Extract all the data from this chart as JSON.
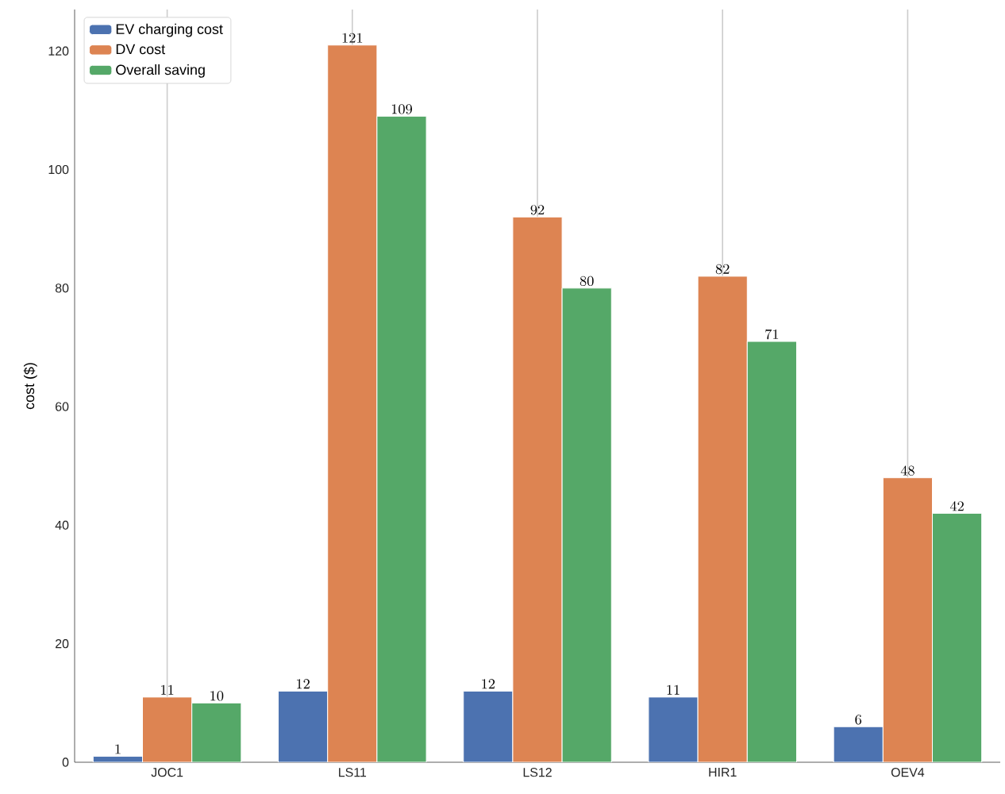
{
  "chart_data": {
    "type": "bar",
    "ylabel": "cost ($)",
    "categories": [
      "JOC1",
      "LS11",
      "LS12",
      "HIR1",
      "OEV4"
    ],
    "series": [
      {
        "name": "EV charging cost",
        "color": "#4c72b0",
        "values": [
          1,
          12,
          12,
          11,
          6
        ]
      },
      {
        "name": "DV cost",
        "color": "#dd8452",
        "values": [
          11,
          121,
          92,
          82,
          48
        ]
      },
      {
        "name": "Overall saving",
        "color": "#55a868",
        "values": [
          10,
          109,
          80,
          71,
          42
        ]
      }
    ],
    "ylim": [
      0,
      127
    ],
    "yticks": [
      0,
      20,
      40,
      60,
      80,
      100,
      120
    ],
    "grid": "x",
    "legend": "top left",
    "data_labels": true
  }
}
